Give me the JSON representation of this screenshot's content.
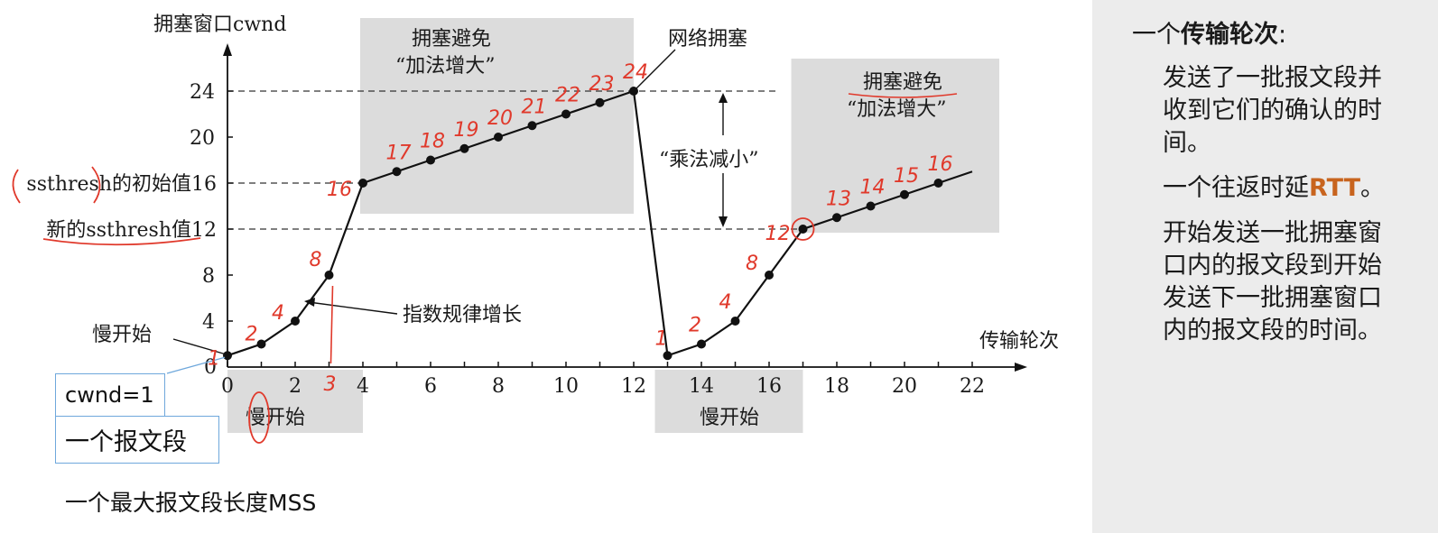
{
  "chart_data": {
    "type": "line",
    "ylabel": "拥塞窗口cwnd",
    "xlabel": "传输轮次",
    "xlim": [
      0,
      23
    ],
    "ylim": [
      0,
      26
    ],
    "x_ticks": [
      0,
      2,
      4,
      6,
      8,
      10,
      12,
      14,
      16,
      18,
      20,
      22
    ],
    "y_ticks": [
      0,
      4,
      8,
      12,
      16,
      20,
      24
    ],
    "series": [
      {
        "x": [
          0,
          1,
          2,
          3,
          4,
          5,
          6,
          7,
          8,
          9,
          10,
          11,
          12,
          13,
          14,
          15,
          16,
          17,
          18,
          19,
          20,
          21,
          22
        ],
        "values": [
          1,
          2,
          4,
          8,
          16,
          17,
          18,
          19,
          20,
          21,
          22,
          23,
          24,
          1,
          2,
          4,
          8,
          12,
          13,
          14,
          15,
          16,
          17
        ]
      }
    ],
    "points_shown_until": 21,
    "thresholds": [
      {
        "y": 24,
        "label": ""
      },
      {
        "y": 16,
        "label": "ssthresh的初始值"
      },
      {
        "y": 12,
        "label": "新的ssthresh值"
      }
    ],
    "regions": [
      {
        "label": "慢开始",
        "x_from": 0,
        "x_to": 4,
        "where": "below-axis"
      },
      {
        "label": "拥塞避免 “加法增大”",
        "x_from": 4,
        "x_to": 12,
        "where": "top"
      },
      {
        "label": "慢开始",
        "x_from": 13,
        "x_to": 17,
        "where": "below-axis"
      },
      {
        "label": "拥塞避免 “加法增大”",
        "x_from": 17,
        "x_to": 22,
        "where": "top"
      }
    ],
    "annotations": {
      "slow_start": "慢开始",
      "exponential": "指数规律增长",
      "congestion": "网络拥塞",
      "mult_decrease": "“乘法减小”",
      "ca_title": "拥塞避免",
      "ca_sub": "“加法增大”"
    },
    "handwritten_labels": [
      {
        "x": 0,
        "text": "1"
      },
      {
        "x": 1,
        "text": "2"
      },
      {
        "x": 2,
        "text": "4"
      },
      {
        "x": 3,
        "text": "8"
      },
      {
        "x": 4,
        "text": "16"
      },
      {
        "x": 5,
        "text": "17"
      },
      {
        "x": 6,
        "text": "18"
      },
      {
        "x": 7,
        "text": "19"
      },
      {
        "x": 8,
        "text": "20"
      },
      {
        "x": 9,
        "text": "21"
      },
      {
        "x": 10,
        "text": "22"
      },
      {
        "x": 11,
        "text": "23"
      },
      {
        "x": 12,
        "text": "24"
      },
      {
        "x": 13,
        "text": "1"
      },
      {
        "x": 14,
        "text": "2"
      },
      {
        "x": 15,
        "text": "4"
      },
      {
        "x": 16,
        "text": "8"
      },
      {
        "x": 17,
        "text": "12"
      },
      {
        "x": 18,
        "text": "13"
      },
      {
        "x": 19,
        "text": "14"
      },
      {
        "x": 20,
        "text": "15"
      },
      {
        "x": 21,
        "text": "16"
      }
    ],
    "handwritten_axis_mark": "3"
  },
  "labels": {
    "cwnd_box": "cwnd=1",
    "segment_box": "一个报文段",
    "mss": "一个最大报文段长度MSS"
  },
  "side_panel": {
    "title_prefix": "一个",
    "title_bold": "传输轮次",
    "title_suffix": ":",
    "p1": "发送了一批报文段并收到它们的确认的时间。",
    "p2_prefix": "一个往返时延",
    "p2_rtt": "RTT",
    "p2_suffix": "。",
    "p3": "开始发送一批拥塞窗口内的报文段到开始发送下一批拥塞窗口内的报文段的时间。"
  },
  "colors": {
    "shade": "#dcdcdc",
    "annotation_red": "#e0392b",
    "box_border": "#6fa8dc",
    "rtt_orange": "#c8641e"
  }
}
